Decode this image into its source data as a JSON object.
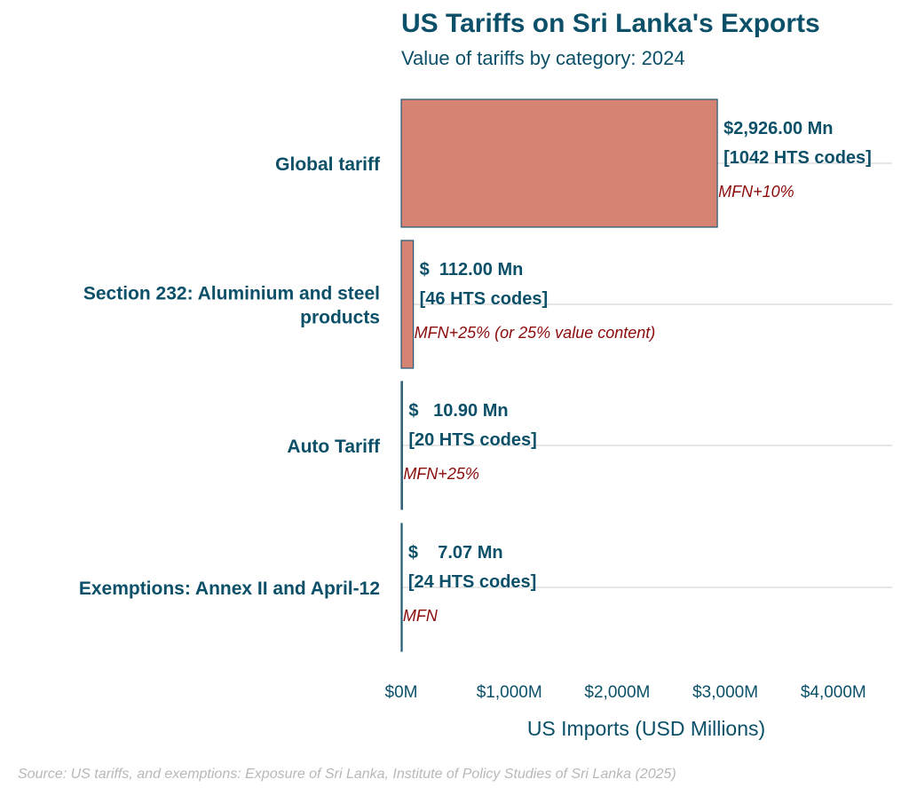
{
  "chart_data": {
    "type": "bar",
    "orientation": "horizontal",
    "title": "US Tariffs on Sri Lanka's Exports",
    "subtitle": "Value of tariffs by category: 2024",
    "xlabel": "US Imports (USD Millions)",
    "ylabel": "",
    "xlim": [
      0,
      4600
    ],
    "xticks": [
      0,
      1000,
      2000,
      3000,
      4000
    ],
    "xtick_labels": [
      "$0M",
      "$1,000M",
      "$2,000M",
      "$3,000M",
      "$4,000M"
    ],
    "grid": "horizontal at category centers",
    "bar_color": "#d4806f",
    "bar_edge_color": "#1f5a73",
    "categories": [
      {
        "label_lines": [
          "Global tariff"
        ],
        "value": 2926.0,
        "value_label": "$2,926.00 Mn",
        "codes_label": "[1042 HTS codes]",
        "note": "MFN+10%"
      },
      {
        "label_lines": [
          "Section 232: Aluminium and steel",
          "products"
        ],
        "value": 112.0,
        "value_label": "$  112.00 Mn",
        "codes_label": "[46 HTS codes]",
        "note": "MFN+25% (or 25% value content)"
      },
      {
        "label_lines": [
          "Auto Tariff"
        ],
        "value": 10.9,
        "value_label": "$   10.90 Mn",
        "codes_label": "[20 HTS codes]",
        "note": "MFN+25%"
      },
      {
        "label_lines": [
          "Exemptions: Annex II and April-12"
        ],
        "value": 7.07,
        "value_label": "$    7.07 Mn",
        "codes_label": "[24 HTS codes]",
        "note": "MFN"
      }
    ],
    "source": "Source: US tariffs, and exemptions: Exposure of Sri Lanka, Institute of Policy Studies of Sri Lanka (2025)"
  }
}
